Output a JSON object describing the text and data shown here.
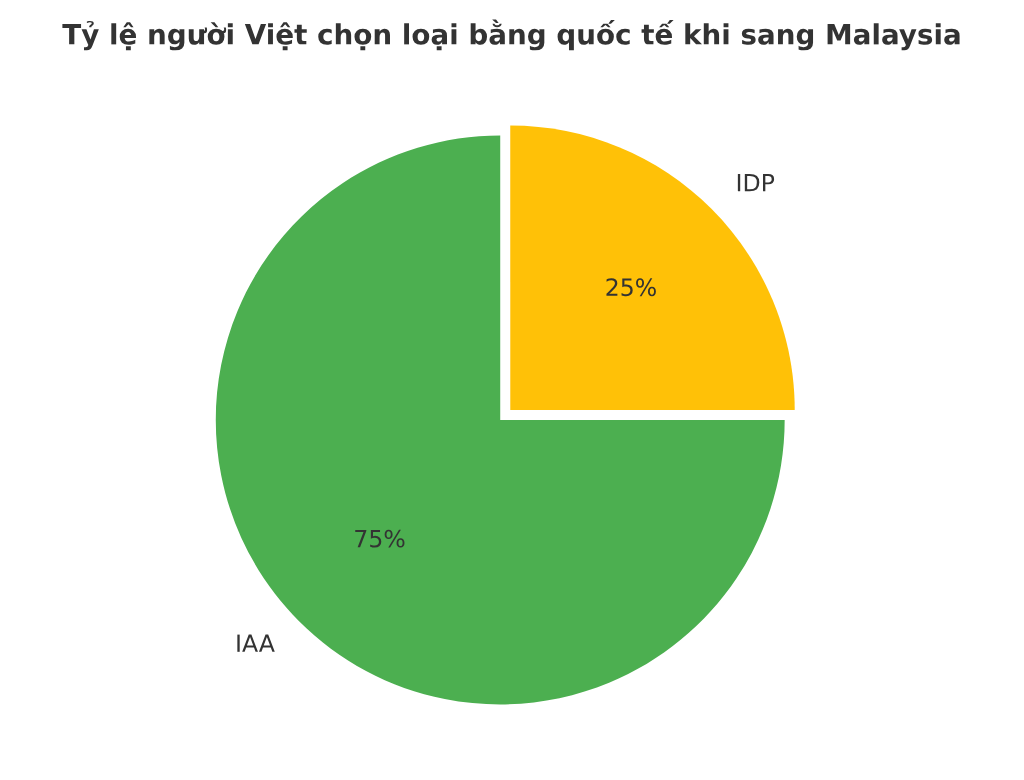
{
  "chart_data": {
    "type": "pie",
    "title": "Tỷ lệ người Việt chọn loại bằng quốc tế khi sang Malaysia",
    "categories": [
      "IDP",
      "IAA"
    ],
    "values": [
      25,
      75
    ],
    "colors": [
      "#ffc107",
      "#4caf50"
    ],
    "value_labels": [
      "25%",
      "75%"
    ]
  }
}
